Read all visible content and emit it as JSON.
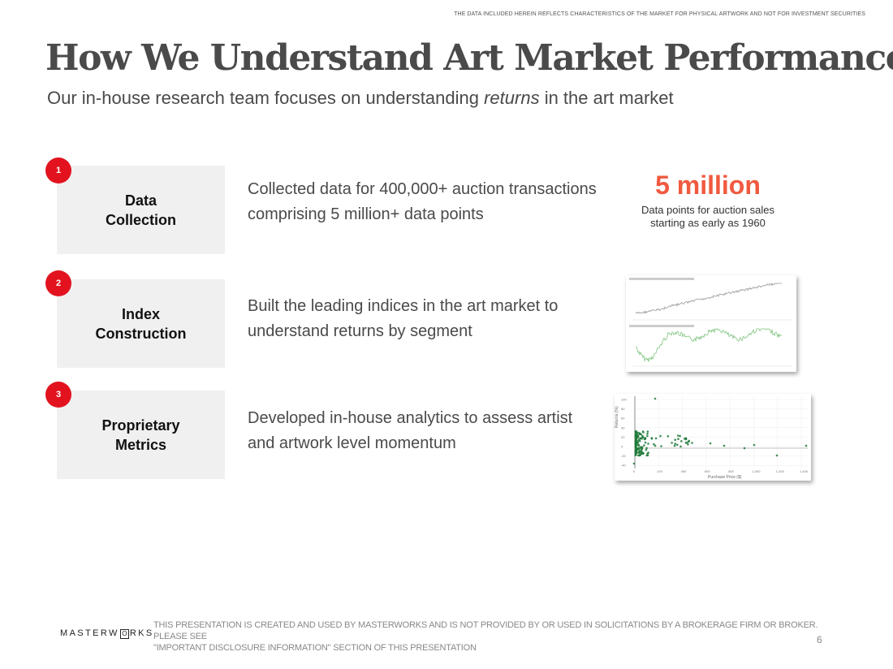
{
  "header": {
    "disclaimer": "THE DATA INCLUDED HEREIN REFLECTS CHARACTERISTICS OF THE MARKET FOR PHYSICAL ARTWORK AND NOT FOR INVESTMENT SECURITIES",
    "title": "How We Understand Art Market Performance",
    "subtitle_before": "Our in-house research team focuses on understanding ",
    "subtitle_emphasis": "returns",
    "subtitle_after": " in the art market"
  },
  "steps": [
    {
      "number": "1",
      "label_line1": "Data",
      "label_line2": "Collection",
      "desc_line1": "Collected data for 400,000+ auction transactions",
      "desc_line2": "comprising 5 million+ data points"
    },
    {
      "number": "2",
      "label_line1": "Index",
      "label_line2": "Construction",
      "desc_line1": "Built the leading indices in the art market to",
      "desc_line2": "understand returns by segment"
    },
    {
      "number": "3",
      "label_line1": "Proprietary",
      "label_line2": "Metrics",
      "desc_line1": "Developed in-house analytics to assess artist",
      "desc_line2": "and artwork level momentum"
    }
  ],
  "stat": {
    "value": "5 million",
    "caption_line1": "Data points for auction sales",
    "caption_line2": "starting as early as 1960"
  },
  "thumbnails": {
    "index_chart": {
      "line_color": "#9a9a9a",
      "line2_color": "#7fc47f"
    },
    "scatter_chart": {
      "point_color": "#1e7a3a",
      "y_axis_label": "Returns (%)",
      "x_axis_label": "Purchase Price ($)",
      "y_ticks": [
        "100",
        "80",
        "60",
        "40",
        "20",
        "0",
        "-20",
        "-40"
      ],
      "x_ticks": [
        "0",
        "200",
        "400",
        "600",
        "800",
        "1,000",
        "1,200",
        "1,400"
      ]
    }
  },
  "footer": {
    "logo_before": "MASTERW",
    "logo_o": "O",
    "logo_after": "RKS",
    "disclaimer_line1": "THIS PRESENTATION  IS CREATED AND USED BY MASTERWORKS AND IS NOT PROVIDED BY OR USED IN SOLICITATIONS BY A BROKERAGE FIRM OR BROKER. PLEASE SEE",
    "disclaimer_line2": "\"IMPORTANT DISCLOSURE INFORMATION\" SECTION OF THIS PRESENTATION",
    "page_number": "6"
  }
}
